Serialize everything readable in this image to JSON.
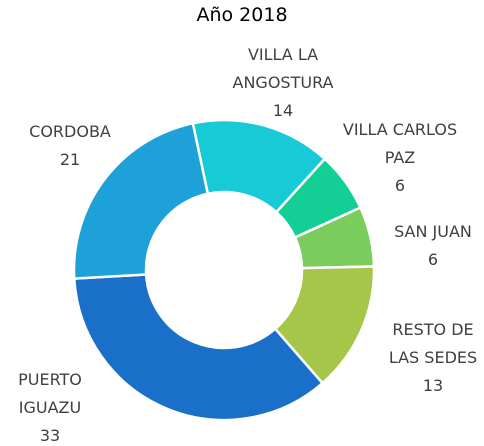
{
  "chart_data": {
    "type": "donut",
    "title": "Año 2018",
    "categories": [
      "VILLA LA ANGOSTURA",
      "VILLA CARLOS PAZ",
      "SAN JUAN",
      "RESTO DE LAS SEDES",
      "PUERTO IGUAZU",
      "CORDOBA"
    ],
    "values": [
      14,
      6,
      6,
      13,
      33,
      21
    ],
    "colors": [
      "#17cad6",
      "#13cf96",
      "#7acc5c",
      "#a6c64a",
      "#1a6fc8",
      "#1ea0d8"
    ]
  }
}
